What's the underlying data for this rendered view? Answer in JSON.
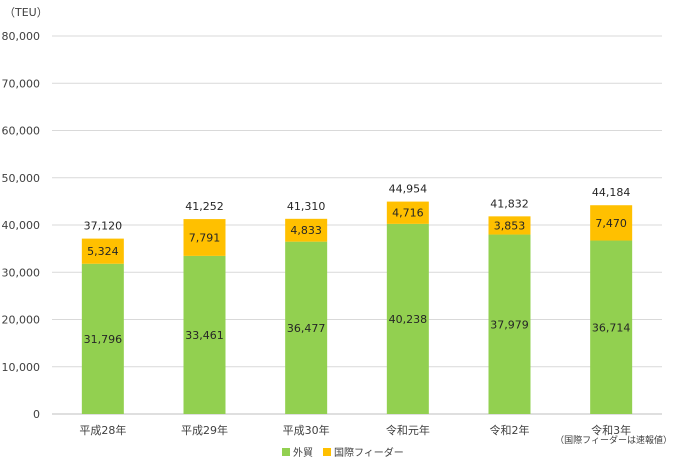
{
  "chart_data": {
    "type": "bar",
    "stacked": true,
    "unit_label": "（TEU）",
    "categories": [
      "平成28年",
      "平成29年",
      "平成30年",
      "令和元年",
      "令和2年",
      "令和3年"
    ],
    "series": [
      {
        "name": "外貿",
        "values": [
          31796,
          33461,
          36477,
          40238,
          37979,
          36714
        ],
        "color": "#92d050"
      },
      {
        "name": "国際フィーダー",
        "values": [
          5324,
          7791,
          4833,
          4716,
          3853,
          7470
        ],
        "color": "#ffc000"
      }
    ],
    "series_labels": [
      [
        "31,796",
        "33,461",
        "36,477",
        "40,238",
        "37,979",
        "36,714"
      ],
      [
        "5,324",
        "7,791",
        "4,833",
        "4,716",
        "3,853",
        "7,470"
      ]
    ],
    "totals": [
      37120,
      41252,
      41310,
      44954,
      41832,
      44184
    ],
    "total_labels": [
      "37,120",
      "41,252",
      "41,310",
      "44,954",
      "41,832",
      "44,184"
    ],
    "ylim": [
      0,
      80000
    ],
    "yticks": [
      0,
      10000,
      20000,
      30000,
      40000,
      50000,
      60000,
      70000,
      80000
    ],
    "ytick_labels": [
      "0",
      "10,000",
      "20,000",
      "30,000",
      "40,000",
      "50,000",
      "60,000",
      "70,000",
      "80,000"
    ],
    "grid": true,
    "legend_position": "bottom",
    "note": "（国際フィーダーは速報値）"
  }
}
